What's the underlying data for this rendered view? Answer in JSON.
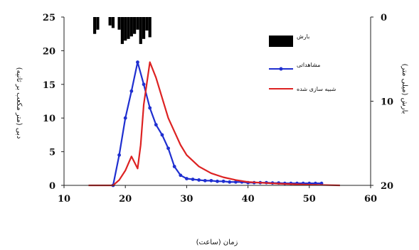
{
  "chart_data": {
    "type": "line",
    "xlabel": "زمان (ساعت)",
    "ylabel_left": "دبی (متر مکعب بر ثانیه)",
    "ylabel_right": "بارش (میلی متر)",
    "xlim": [
      10,
      60
    ],
    "ylim_left": [
      0,
      25
    ],
    "ylim_right": [
      0,
      20
    ],
    "right_axis_inverted": true,
    "x_ticks": [
      10,
      20,
      30,
      40,
      50,
      60
    ],
    "y_ticks_left": [
      0,
      5,
      10,
      15,
      20,
      25
    ],
    "y_ticks_right": [
      0,
      10,
      20
    ],
    "grid": false,
    "legend_position": "top-right",
    "series": [
      {
        "name": "بارش",
        "kind": "bar",
        "axis": "right",
        "color": "#000000",
        "x": [
          15,
          15.5,
          17.5,
          18,
          19,
          19.5,
          20,
          20.5,
          21,
          21.5,
          22,
          22.5,
          23,
          23.5,
          24
        ],
        "values": [
          2,
          1.5,
          1,
          1.3,
          1.5,
          3.2,
          2.8,
          2.6,
          2.3,
          2,
          1.5,
          3.2,
          2.6,
          1.6,
          2.4
        ]
      },
      {
        "name": "مشاهداتی",
        "kind": "line-marker",
        "axis": "left",
        "color": "#1f2fd0",
        "x": [
          18,
          19,
          20,
          21,
          22,
          23,
          24,
          25,
          26,
          27,
          28,
          29,
          30,
          31,
          32,
          33,
          34,
          35,
          36,
          37,
          38,
          39,
          40,
          41,
          42,
          43,
          44,
          45,
          46,
          47,
          48,
          49,
          50,
          51,
          52
        ],
        "values": [
          0,
          4.5,
          10,
          14,
          18.3,
          15,
          11.5,
          9,
          7.5,
          5.5,
          2.8,
          1.5,
          1.0,
          0.9,
          0.8,
          0.7,
          0.7,
          0.6,
          0.6,
          0.5,
          0.5,
          0.5,
          0.4,
          0.4,
          0.4,
          0.4,
          0.35,
          0.35,
          0.3,
          0.3,
          0.3,
          0.3,
          0.3,
          0.3,
          0.3
        ]
      },
      {
        "name": "شبیه سازی شده",
        "kind": "line",
        "axis": "left",
        "color": "#dd2222",
        "x": [
          14,
          18,
          19,
          20,
          21,
          22,
          22.5,
          23,
          24,
          25,
          26,
          27,
          28,
          29,
          30,
          32,
          34,
          36,
          38,
          40,
          45,
          50,
          55
        ],
        "values": [
          0,
          0,
          0.8,
          2.2,
          4.3,
          2.5,
          6,
          12,
          18.3,
          16,
          13,
          10,
          8,
          6,
          4.5,
          2.8,
          1.8,
          1.2,
          0.8,
          0.5,
          0.25,
          0.1,
          0
        ]
      }
    ]
  }
}
